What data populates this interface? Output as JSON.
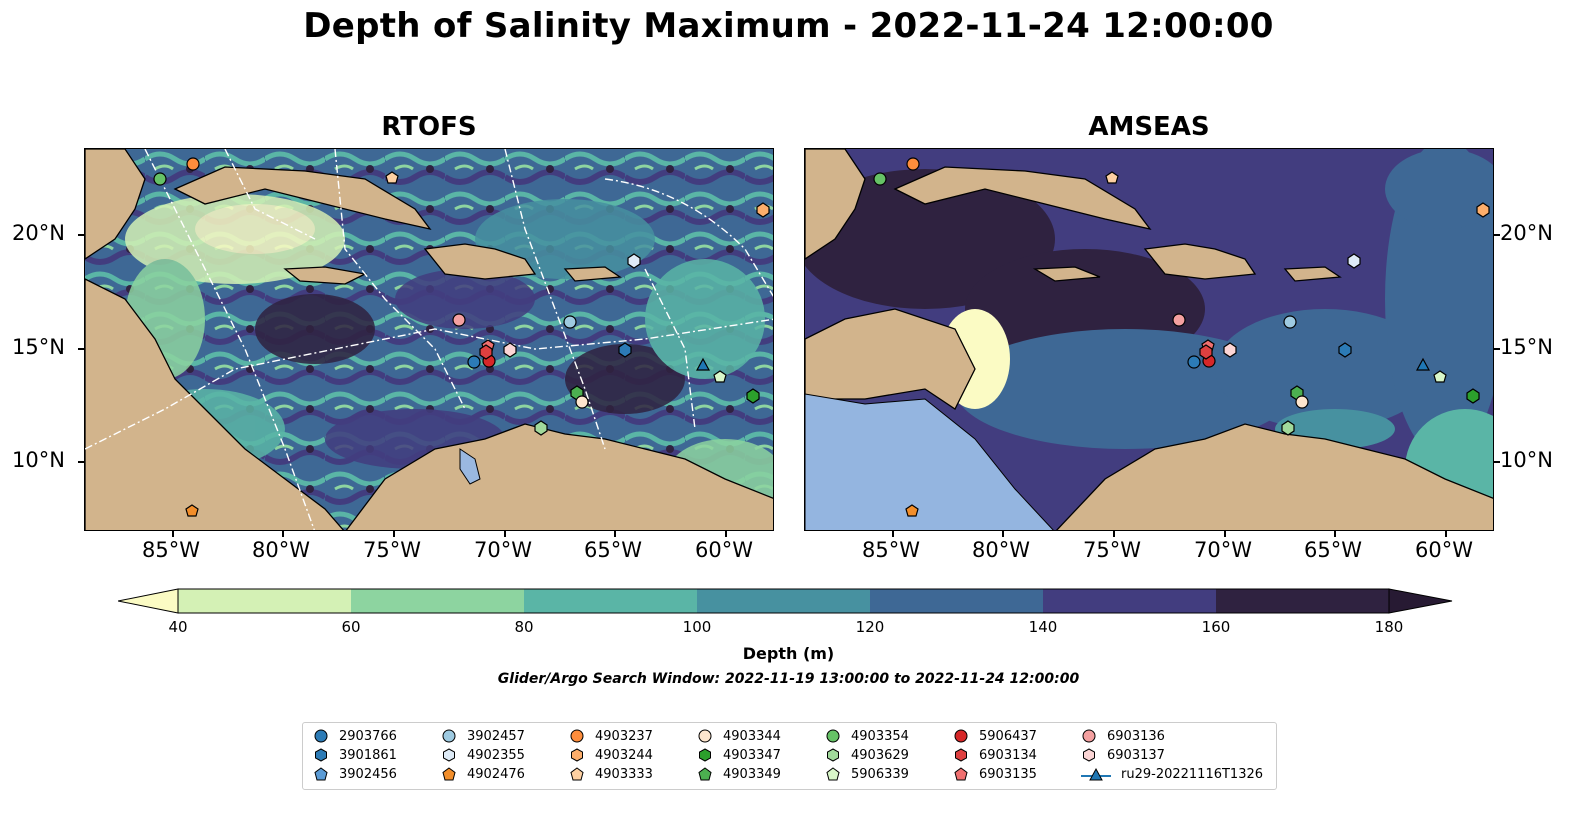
{
  "title": "Depth of Salinity Maximum - 2022-11-24 12:00:00",
  "panels": [
    {
      "title": "RTOFS"
    },
    {
      "title": "AMSEAS"
    }
  ],
  "axes": {
    "lon_ticks": [
      "85°W",
      "80°W",
      "75°W",
      "70°W",
      "65°W",
      "60°W"
    ],
    "lat_ticks": [
      "20°N",
      "15°N",
      "10°N"
    ]
  },
  "colorbar": {
    "label": "Depth (m)",
    "ticks": [
      "40",
      "60",
      "80",
      "100",
      "120",
      "140",
      "160",
      "180"
    ],
    "colors": [
      "#fbfbc4",
      "#d4f1b5",
      "#8dd4a0",
      "#5ab5a6",
      "#4791a0",
      "#3e6895",
      "#423d7f",
      "#2f2240",
      "#271a33"
    ],
    "extend": "both"
  },
  "search_window": "Glider/Argo Search Window: 2022-11-19 13:00:00 to 2022-11-24 12:00:00",
  "legend": {
    "columns": [
      [
        {
          "label": "2903766",
          "color": "#2c7bb6",
          "marker": "circle"
        },
        {
          "label": "3901861",
          "color": "#2c7bb6",
          "marker": "hexagon"
        },
        {
          "label": "3902456",
          "color": "#5b9bd5",
          "marker": "pentagon"
        }
      ],
      [
        {
          "label": "3902457",
          "color": "#9ecae1",
          "marker": "circle"
        },
        {
          "label": "4902355",
          "color": "#deebf7",
          "marker": "hexagon"
        },
        {
          "label": "4902476",
          "color": "#f28e2b",
          "marker": "pentagon"
        }
      ],
      [
        {
          "label": "4903237",
          "color": "#fd8d3c",
          "marker": "circle"
        },
        {
          "label": "4903244",
          "color": "#fdae6b",
          "marker": "hexagon"
        },
        {
          "label": "4903333",
          "color": "#fdd0a2",
          "marker": "pentagon"
        }
      ],
      [
        {
          "label": "4903344",
          "color": "#fee6ce",
          "marker": "circle"
        },
        {
          "label": "4903347",
          "color": "#2ca02c",
          "marker": "hexagon"
        },
        {
          "label": "4903349",
          "color": "#4caf50",
          "marker": "pentagon"
        }
      ],
      [
        {
          "label": "4903354",
          "color": "#66c266",
          "marker": "circle"
        },
        {
          "label": "4903629",
          "color": "#a1d99b",
          "marker": "hexagon"
        },
        {
          "label": "5906339",
          "color": "#d9f7c9",
          "marker": "pentagon"
        }
      ],
      [
        {
          "label": "5906437",
          "color": "#d62728",
          "marker": "circle"
        },
        {
          "label": "6903134",
          "color": "#de4040",
          "marker": "hexagon"
        },
        {
          "label": "6903135",
          "color": "#f07070",
          "marker": "pentagon"
        }
      ],
      [
        {
          "label": "6903136",
          "color": "#f4a0a0",
          "marker": "circle"
        },
        {
          "label": "6903137",
          "color": "#fbd5d5",
          "marker": "hexagon"
        },
        {
          "label": "ru29-20221116T1326",
          "color": "#1f77b4",
          "marker": "triangle"
        }
      ]
    ]
  },
  "colors": {
    "land": "#d2b48c",
    "water_bodies": "#9ab8e0",
    "coastline": "#000000"
  }
}
